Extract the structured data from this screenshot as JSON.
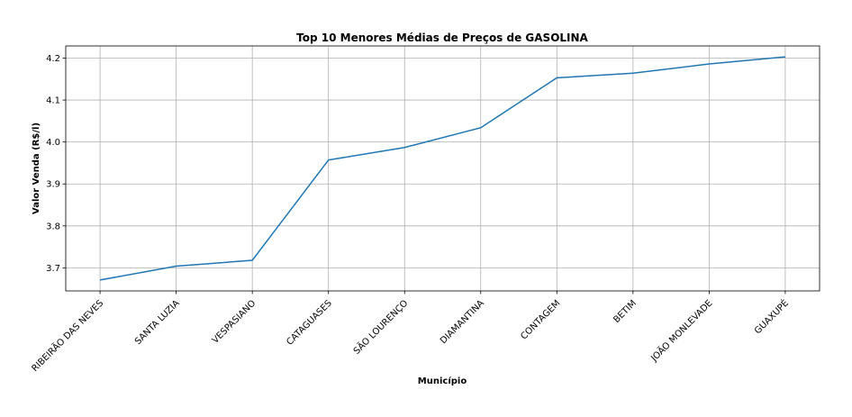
{
  "chart_data": {
    "type": "line",
    "title": "Top 10 Menores Médias de Preços de GASOLINA",
    "xlabel": "Município",
    "ylabel": "Valor Venda (R$/l)",
    "categories": [
      "RIBEIRÃO DAS NEVES",
      "SANTA LUZIA",
      "VESPASIANO",
      "CATAGUASES",
      "SÃO LOURENÇO",
      "DIAMANTINA",
      "CONTAGEM",
      "BETIM",
      "JOÃO MONLEVADE",
      "GUAXUPÉ"
    ],
    "series": [
      {
        "values": [
          3.671,
          3.704,
          3.718,
          3.957,
          3.987,
          4.034,
          4.153,
          4.164,
          4.186,
          4.203
        ],
        "color": "#1f77b4"
      }
    ],
    "ylim": [
      3.645,
      4.229
    ],
    "yticks": [
      3.7,
      3.8,
      3.9,
      4.0,
      4.1,
      4.2
    ],
    "ytick_labels": [
      "3.7",
      "3.8",
      "3.9",
      "4.0",
      "4.1",
      "4.2"
    ],
    "grid": true,
    "legend": "none"
  }
}
